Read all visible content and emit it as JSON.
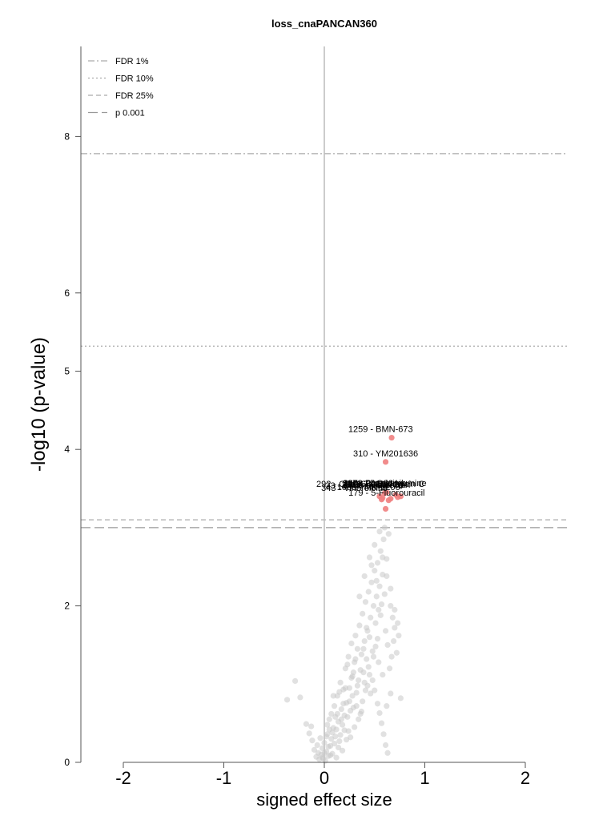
{
  "chart_data": {
    "type": "scatter",
    "title": "loss_cnaPANCAN360",
    "xlabel": "signed effect size",
    "ylabel": "-log10 (p-value)",
    "xlim": [
      -2.4,
      2.4
    ],
    "ylim": [
      0,
      8.9
    ],
    "x_ticks": [
      -2,
      -1,
      0,
      1,
      2
    ],
    "x_tick_labels": [
      "-2",
      "-1",
      "0",
      "1",
      "2"
    ],
    "y_ticks": [
      0,
      2,
      4,
      5,
      6,
      8
    ],
    "y_tick_labels": [
      "0",
      "2",
      "4",
      "5",
      "6",
      "8"
    ],
    "grid": false,
    "legend_position": "top-left",
    "vertical_line_x": 0,
    "threshold_lines": [
      {
        "name": "FDR 1%",
        "y": 7.78,
        "style": "dashdot",
        "color": "#aaaaaa"
      },
      {
        "name": "FDR 10%",
        "y": 5.32,
        "style": "dotted",
        "color": "#aaaaaa"
      },
      {
        "name": "FDR 25%",
        "y": 3.1,
        "style": "dashed",
        "color": "#aaaaaa"
      },
      {
        "name": "p 0.001",
        "y": 3.0,
        "style": "longdash",
        "color": "#999999"
      }
    ],
    "colors": {
      "significant": "#f08080",
      "nonsignificant": "#c8c8c8",
      "axis": "#555555",
      "zero_line": "#bbbbbb"
    },
    "significant_points": [
      {
        "x": 0.67,
        "y": 4.15,
        "label": "1259 - BMN-673"
      },
      {
        "x": 0.61,
        "y": 3.84,
        "label": "310 - YM201636"
      },
      {
        "x": 0.62,
        "y": 3.45,
        "label": "267 - LAQ824"
      },
      {
        "x": 0.55,
        "y": 3.4,
        "label": "1002 - Lapatinib"
      },
      {
        "x": 0.76,
        "y": 3.4,
        "label": "297 - Piperlongumine"
      },
      {
        "x": 0.58,
        "y": 3.38,
        "label": "292 - CP466722"
      },
      {
        "x": 0.64,
        "y": 3.35,
        "label": "33 - Bortezomib"
      },
      {
        "x": 0.71,
        "y": 3.42,
        "label": "1013 - Nutlin-3a"
      },
      {
        "x": 0.6,
        "y": 3.44,
        "label": "1016 - Obatoclax"
      },
      {
        "x": 0.66,
        "y": 3.37,
        "label": "1053 - MK-2206"
      },
      {
        "x": 0.57,
        "y": 3.36,
        "label": "343 - Vinorelbine"
      },
      {
        "x": 0.73,
        "y": 3.39,
        "label": "1047 - Mitomycin C"
      },
      {
        "x": 0.61,
        "y": 3.24,
        "label": "179 - 5-Fluorouracil"
      }
    ],
    "annotations": [
      {
        "text": "1259 - BMN-673",
        "x": 0.56,
        "y": 4.22
      },
      {
        "text": "310 - YM201636",
        "x": 0.61,
        "y": 3.91
      },
      {
        "text": "267 - LAQ824",
        "x": 0.46,
        "y": 3.53
      },
      {
        "text": "1002 - Lapatinib",
        "x": 0.5,
        "y": 3.53
      },
      {
        "text": "297 - Piperlongumine",
        "x": 0.6,
        "y": 3.53
      },
      {
        "text": "292 - CP466722",
        "x": 0.24,
        "y": 3.52
      },
      {
        "text": "33 - Bortezomib",
        "x": 0.32,
        "y": 3.5
      },
      {
        "text": "1013 - Nutlin-3a",
        "x": 0.48,
        "y": 3.51
      },
      {
        "text": "1016 - Obatoclax",
        "x": 0.52,
        "y": 3.51
      },
      {
        "text": "1053 - MK-2206",
        "x": 0.44,
        "y": 3.48
      },
      {
        "text": "343 - Vinorelbine",
        "x": 0.3,
        "y": 3.47
      },
      {
        "text": "1047 - Mitomycin C",
        "x": 0.62,
        "y": 3.52
      },
      {
        "text": "179 - 5-Fluorouracil",
        "x": 0.62,
        "y": 3.41
      }
    ],
    "background_points": [
      {
        "x": -0.37,
        "y": 0.8
      },
      {
        "x": -0.29,
        "y": 1.04
      },
      {
        "x": -0.24,
        "y": 0.83
      },
      {
        "x": -0.18,
        "y": 0.49
      },
      {
        "x": -0.15,
        "y": 0.37
      },
      {
        "x": -0.13,
        "y": 0.46
      },
      {
        "x": -0.12,
        "y": 0.28
      },
      {
        "x": -0.1,
        "y": 0.16
      },
      {
        "x": -0.08,
        "y": 0.07
      },
      {
        "x": -0.07,
        "y": 0.22
      },
      {
        "x": -0.06,
        "y": 0.12
      },
      {
        "x": -0.05,
        "y": 0.04
      },
      {
        "x": -0.04,
        "y": 0.31
      },
      {
        "x": -0.03,
        "y": 0.1
      },
      {
        "x": -0.02,
        "y": 0.18
      },
      {
        "x": -0.01,
        "y": 0.05
      },
      {
        "x": 0.0,
        "y": 0.25
      },
      {
        "x": 0.01,
        "y": 0.02
      },
      {
        "x": 0.02,
        "y": 0.14
      },
      {
        "x": 0.03,
        "y": 0.36
      },
      {
        "x": 0.04,
        "y": 0.08
      },
      {
        "x": 0.05,
        "y": 0.55
      },
      {
        "x": 0.06,
        "y": 0.21
      },
      {
        "x": 0.07,
        "y": 0.62
      },
      {
        "x": 0.08,
        "y": 0.11
      },
      {
        "x": 0.09,
        "y": 0.44
      },
      {
        "x": 0.1,
        "y": 0.72
      },
      {
        "x": 0.11,
        "y": 0.33
      },
      {
        "x": 0.12,
        "y": 0.06
      },
      {
        "x": 0.13,
        "y": 0.85
      },
      {
        "x": 0.14,
        "y": 0.52
      },
      {
        "x": 0.15,
        "y": 0.27
      },
      {
        "x": 0.16,
        "y": 1.02
      },
      {
        "x": 0.17,
        "y": 0.68
      },
      {
        "x": 0.18,
        "y": 0.15
      },
      {
        "x": 0.19,
        "y": 0.93
      },
      {
        "x": 0.2,
        "y": 0.41
      },
      {
        "x": 0.21,
        "y": 1.2
      },
      {
        "x": 0.22,
        "y": 0.76
      },
      {
        "x": 0.23,
        "y": 0.58
      },
      {
        "x": 0.24,
        "y": 1.35
      },
      {
        "x": 0.25,
        "y": 0.95
      },
      {
        "x": 0.26,
        "y": 0.32
      },
      {
        "x": 0.27,
        "y": 1.52
      },
      {
        "x": 0.28,
        "y": 1.1
      },
      {
        "x": 0.29,
        "y": 0.7
      },
      {
        "x": 0.3,
        "y": 1.28
      },
      {
        "x": 0.31,
        "y": 1.62
      },
      {
        "x": 0.32,
        "y": 0.89
      },
      {
        "x": 0.33,
        "y": 1.45
      },
      {
        "x": 0.34,
        "y": 1.05
      },
      {
        "x": 0.35,
        "y": 1.75
      },
      {
        "x": 0.36,
        "y": 0.62
      },
      {
        "x": 0.37,
        "y": 1.38
      },
      {
        "x": 0.38,
        "y": 1.9
      },
      {
        "x": 0.39,
        "y": 1.15
      },
      {
        "x": 0.4,
        "y": 1.55
      },
      {
        "x": 0.41,
        "y": 2.05
      },
      {
        "x": 0.42,
        "y": 1.72
      },
      {
        "x": 0.43,
        "y": 0.98
      },
      {
        "x": 0.44,
        "y": 2.18
      },
      {
        "x": 0.45,
        "y": 1.6
      },
      {
        "x": 0.46,
        "y": 1.85
      },
      {
        "x": 0.47,
        "y": 2.3
      },
      {
        "x": 0.48,
        "y": 1.42
      },
      {
        "x": 0.49,
        "y": 2.0
      },
      {
        "x": 0.5,
        "y": 2.45
      },
      {
        "x": 0.51,
        "y": 1.78
      },
      {
        "x": 0.52,
        "y": 2.12
      },
      {
        "x": 0.53,
        "y": 2.55
      },
      {
        "x": 0.54,
        "y": 1.95
      },
      {
        "x": 0.55,
        "y": 2.25
      },
      {
        "x": 0.56,
        "y": 2.7
      },
      {
        "x": 0.57,
        "y": 2.02
      },
      {
        "x": 0.58,
        "y": 2.4
      },
      {
        "x": 0.59,
        "y": 2.85
      },
      {
        "x": 0.6,
        "y": 2.15
      },
      {
        "x": 0.61,
        "y": 1.68
      },
      {
        "x": 0.62,
        "y": 2.6
      },
      {
        "x": 0.63,
        "y": 1.5
      },
      {
        "x": 0.64,
        "y": 2.92
      },
      {
        "x": 0.65,
        "y": 1.2
      },
      {
        "x": 0.66,
        "y": 2.0
      },
      {
        "x": 0.67,
        "y": 1.35
      },
      {
        "x": 0.68,
        "y": 1.85
      },
      {
        "x": 0.69,
        "y": 1.55
      },
      {
        "x": 0.7,
        "y": 1.72
      },
      {
        "x": 0.72,
        "y": 1.4
      },
      {
        "x": 0.74,
        "y": 1.62
      },
      {
        "x": 0.76,
        "y": 0.82
      },
      {
        "x": 0.63,
        "y": 0.12
      },
      {
        "x": 0.61,
        "y": 0.22
      },
      {
        "x": 0.59,
        "y": 0.36
      },
      {
        "x": 0.57,
        "y": 0.5
      },
      {
        "x": 0.55,
        "y": 0.63
      },
      {
        "x": 0.53,
        "y": 0.75
      },
      {
        "x": 0.5,
        "y": 0.92
      },
      {
        "x": 0.48,
        "y": 1.05
      },
      {
        "x": 0.46,
        "y": 0.88
      },
      {
        "x": 0.44,
        "y": 1.22
      },
      {
        "x": 0.42,
        "y": 1.32
      },
      {
        "x": 0.4,
        "y": 1.02
      },
      {
        "x": 0.38,
        "y": 0.78
      },
      {
        "x": 0.36,
        "y": 1.18
      },
      {
        "x": 0.34,
        "y": 0.55
      },
      {
        "x": 0.32,
        "y": 0.72
      },
      {
        "x": 0.3,
        "y": 0.45
      },
      {
        "x": 0.28,
        "y": 0.85
      },
      {
        "x": 0.26,
        "y": 0.66
      },
      {
        "x": 0.24,
        "y": 0.4
      },
      {
        "x": 0.22,
        "y": 0.29
      },
      {
        "x": 0.2,
        "y": 0.6
      },
      {
        "x": 0.18,
        "y": 0.48
      },
      {
        "x": 0.16,
        "y": 0.35
      },
      {
        "x": 0.14,
        "y": 0.19
      },
      {
        "x": 0.12,
        "y": 0.42
      },
      {
        "x": 0.1,
        "y": 0.24
      },
      {
        "x": 0.08,
        "y": 0.38
      },
      {
        "x": 0.06,
        "y": 0.09
      },
      {
        "x": 0.04,
        "y": 0.2
      },
      {
        "x": 0.02,
        "y": 0.33
      },
      {
        "x": 0.0,
        "y": 0.12
      },
      {
        "x": -0.02,
        "y": 0.06
      },
      {
        "x": 0.35,
        "y": 2.12
      },
      {
        "x": 0.4,
        "y": 2.38
      },
      {
        "x": 0.45,
        "y": 2.62
      },
      {
        "x": 0.5,
        "y": 2.78
      },
      {
        "x": 0.55,
        "y": 2.95
      },
      {
        "x": 0.6,
        "y": 3.0
      },
      {
        "x": 0.47,
        "y": 2.52
      },
      {
        "x": 0.52,
        "y": 2.32
      },
      {
        "x": 0.58,
        "y": 2.62
      },
      {
        "x": 0.62,
        "y": 2.38
      },
      {
        "x": 0.66,
        "y": 2.22
      },
      {
        "x": 0.7,
        "y": 1.95
      },
      {
        "x": 0.73,
        "y": 1.78
      },
      {
        "x": 0.56,
        "y": 1.88
      },
      {
        "x": 0.53,
        "y": 1.58
      },
      {
        "x": 0.49,
        "y": 1.35
      },
      {
        "x": 0.45,
        "y": 1.12
      },
      {
        "x": 0.41,
        "y": 0.92
      },
      {
        "x": 0.37,
        "y": 0.65
      },
      {
        "x": 0.33,
        "y": 0.98
      },
      {
        "x": 0.29,
        "y": 1.15
      },
      {
        "x": 0.25,
        "y": 0.78
      },
      {
        "x": 0.21,
        "y": 0.95
      },
      {
        "x": 0.17,
        "y": 0.55
      },
      {
        "x": 0.13,
        "y": 0.62
      },
      {
        "x": 0.09,
        "y": 0.85
      },
      {
        "x": 0.05,
        "y": 0.42
      },
      {
        "x": 0.66,
        "y": 0.88
      },
      {
        "x": 0.62,
        "y": 0.72
      },
      {
        "x": 0.58,
        "y": 1.12
      },
      {
        "x": 0.54,
        "y": 1.28
      },
      {
        "x": 0.51,
        "y": 1.48
      },
      {
        "x": 0.43,
        "y": 1.68
      },
      {
        "x": 0.39,
        "y": 1.45
      },
      {
        "x": 0.31,
        "y": 1.32
      },
      {
        "x": 0.27,
        "y": 1.08
      },
      {
        "x": 0.23,
        "y": 1.25
      },
      {
        "x": 0.19,
        "y": 0.75
      },
      {
        "x": 0.15,
        "y": 0.9
      },
      {
        "x": 0.11,
        "y": 0.58
      },
      {
        "x": 0.07,
        "y": 0.3
      },
      {
        "x": 0.03,
        "y": 0.48
      }
    ]
  }
}
